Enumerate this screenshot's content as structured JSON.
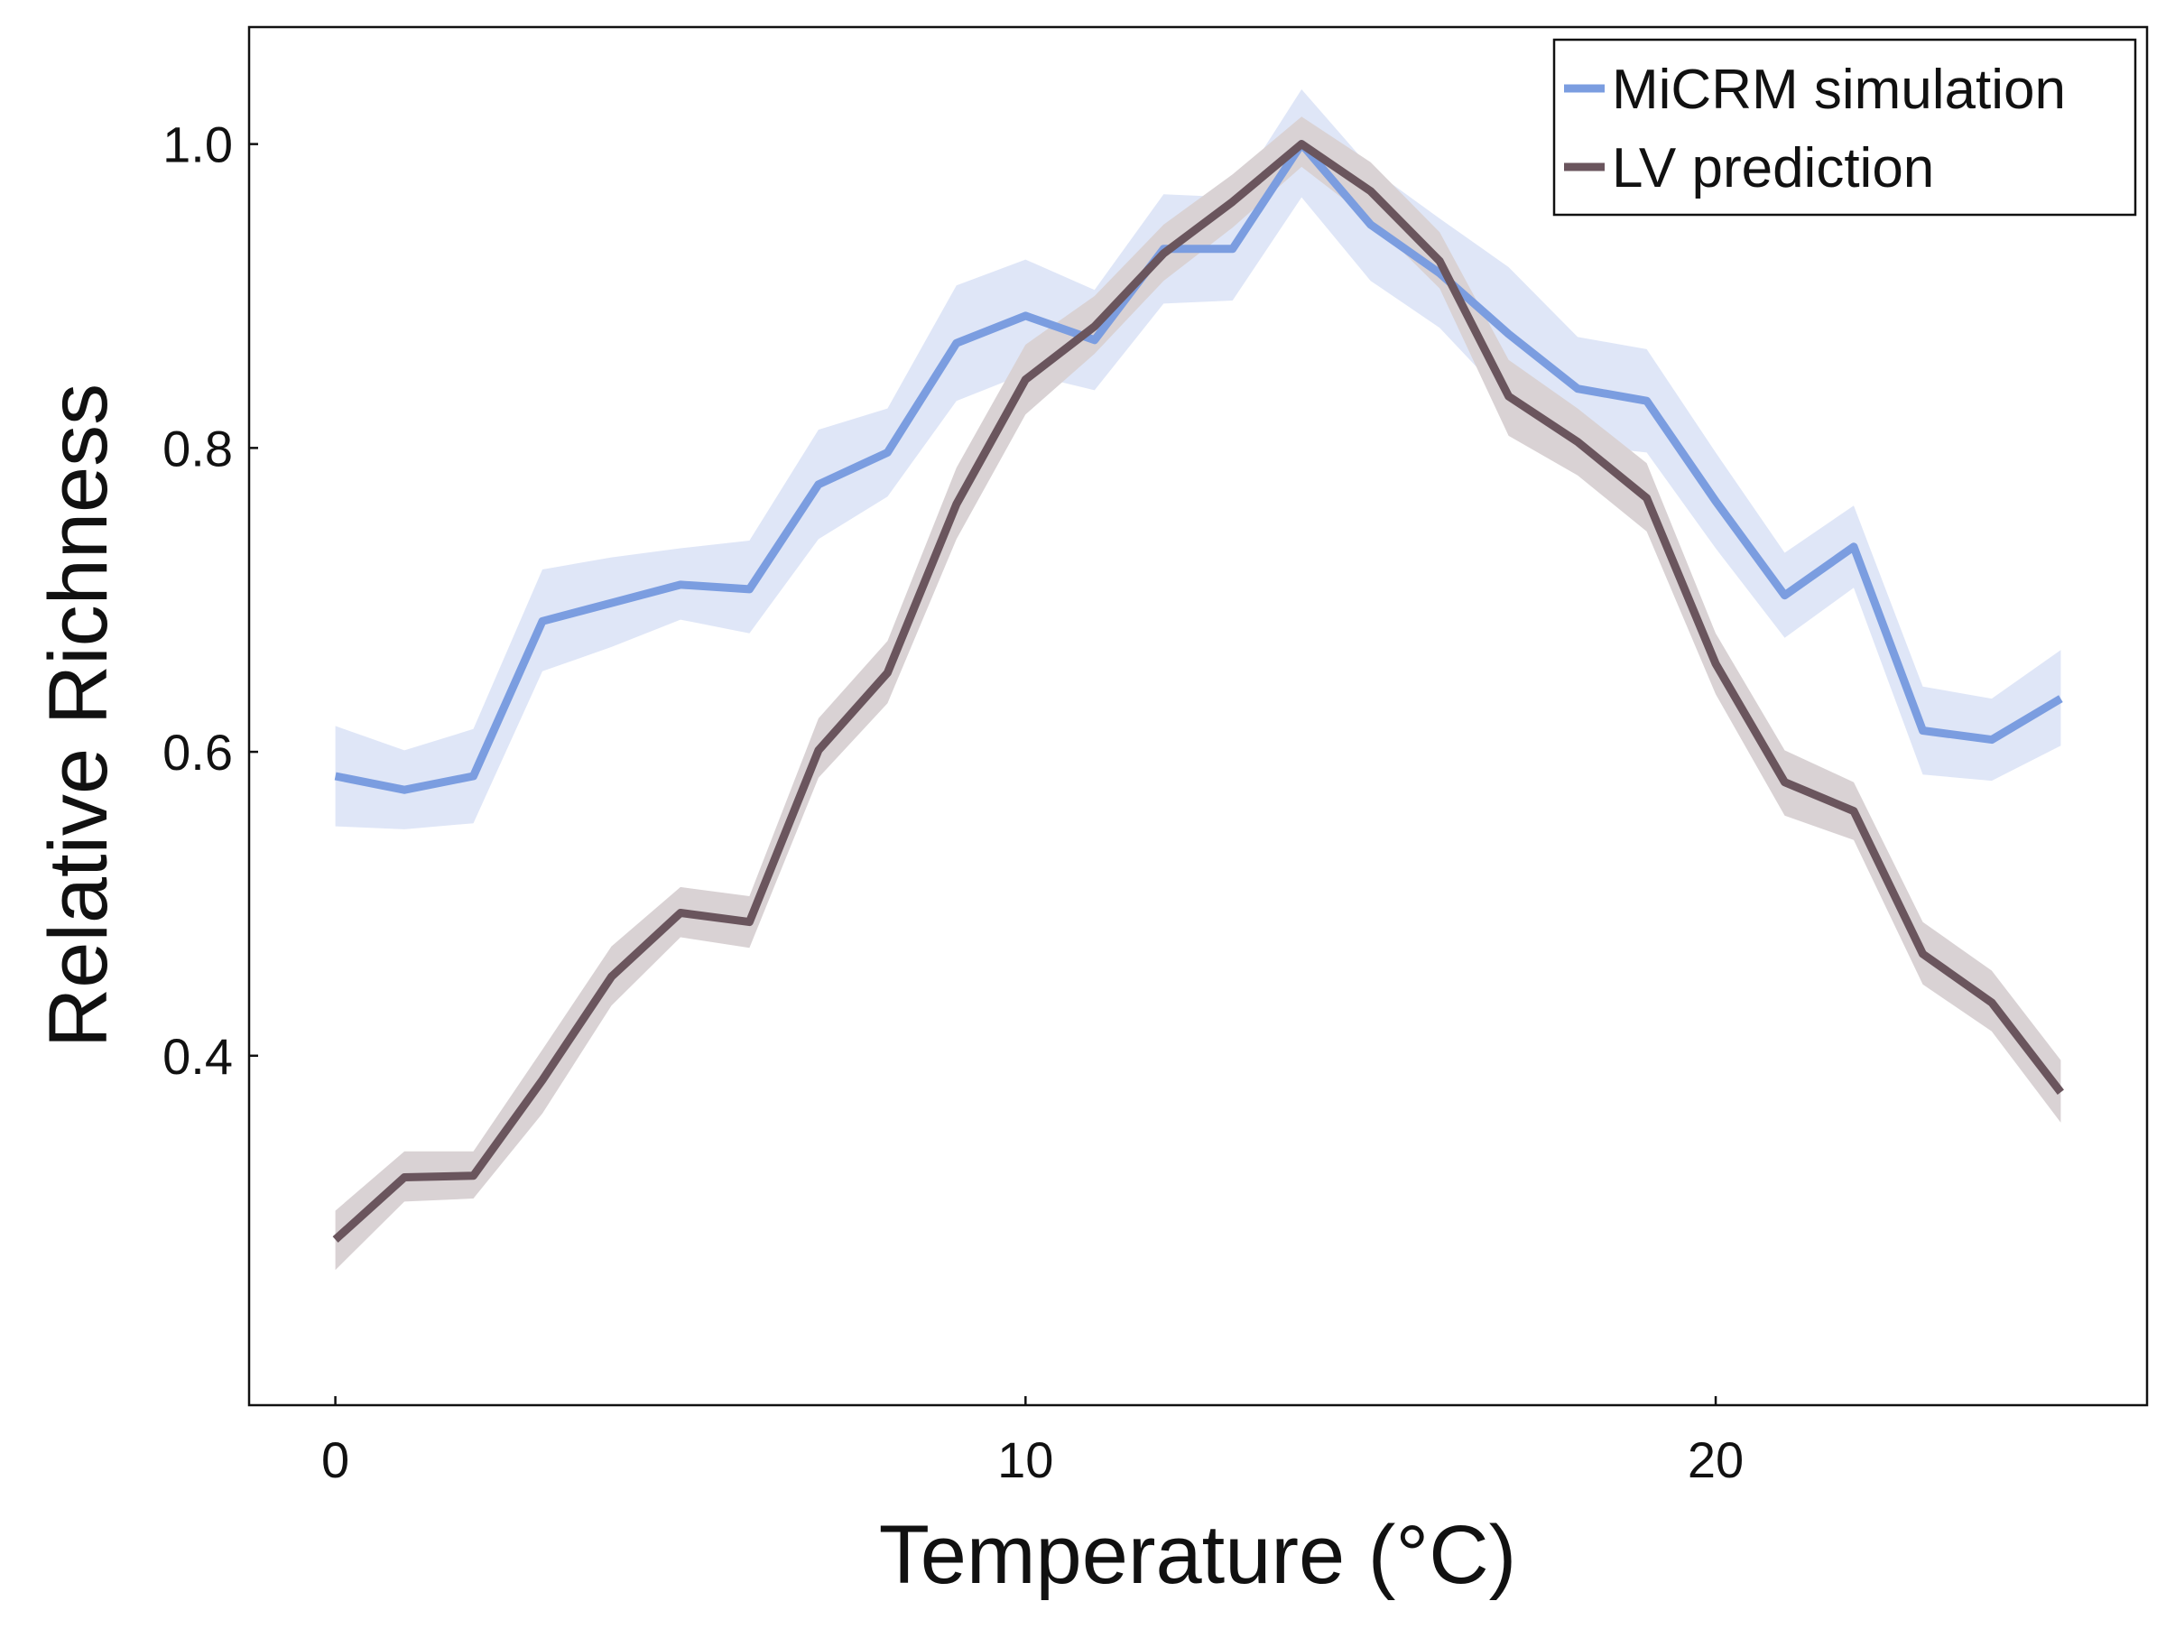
{
  "chart_data": {
    "type": "line",
    "xlabel": "Temperature (°C)",
    "ylabel": "Relative Richness",
    "xlim": [
      -1.25,
      26.25
    ],
    "ylim": [
      0.17,
      1.077
    ],
    "xticks": [
      0,
      10,
      20
    ],
    "yticks": [
      0.4,
      0.6,
      0.8,
      1.0
    ],
    "xtick_labels": [
      "0",
      "10",
      "20"
    ],
    "ytick_labels": [
      "0.4",
      "0.6",
      "0.8",
      "1.0"
    ],
    "grid": false,
    "legend_position": "top-right",
    "x": [
      0,
      1,
      2,
      3,
      4,
      5,
      6,
      7,
      8,
      9,
      10,
      11,
      12,
      13,
      14,
      15,
      16,
      17,
      18,
      19,
      20,
      21,
      22,
      23,
      24,
      25
    ],
    "series": [
      {
        "name": "MiCRM simulation",
        "color": "#7b9de0",
        "band_color": "#dfe6f7",
        "values": [
          0.584,
          0.575,
          0.584,
          0.686,
          0.698,
          0.71,
          0.707,
          0.776,
          0.797,
          0.869,
          0.887,
          0.871,
          0.931,
          0.931,
          1.0,
          0.947,
          0.915,
          0.875,
          0.839,
          0.831,
          0.765,
          0.703,
          0.735,
          0.614,
          0.608,
          0.635
        ],
        "lower": [
          0.551,
          0.549,
          0.553,
          0.653,
          0.669,
          0.687,
          0.678,
          0.74,
          0.768,
          0.831,
          0.849,
          0.838,
          0.895,
          0.897,
          0.965,
          0.91,
          0.879,
          0.831,
          0.802,
          0.797,
          0.734,
          0.675,
          0.708,
          0.585,
          0.581,
          0.604
        ],
        "upper": [
          0.617,
          0.601,
          0.615,
          0.72,
          0.728,
          0.734,
          0.739,
          0.812,
          0.826,
          0.907,
          0.924,
          0.904,
          0.967,
          0.965,
          1.036,
          0.984,
          0.951,
          0.919,
          0.873,
          0.865,
          0.797,
          0.731,
          0.762,
          0.643,
          0.635,
          0.667
        ]
      },
      {
        "name": "LV prediction",
        "color": "#6a555d",
        "band_color": "#d9d2d4",
        "values": [
          0.279,
          0.32,
          0.321,
          0.384,
          0.452,
          0.494,
          0.488,
          0.601,
          0.652,
          0.763,
          0.845,
          0.88,
          0.928,
          0.962,
          1.0,
          0.969,
          0.923,
          0.834,
          0.804,
          0.767,
          0.658,
          0.58,
          0.561,
          0.467,
          0.435,
          0.376
        ],
        "lower": [
          0.259,
          0.304,
          0.306,
          0.362,
          0.433,
          0.478,
          0.471,
          0.583,
          0.632,
          0.74,
          0.822,
          0.862,
          0.91,
          0.945,
          0.985,
          0.95,
          0.905,
          0.808,
          0.782,
          0.745,
          0.638,
          0.558,
          0.542,
          0.447,
          0.416,
          0.356
        ],
        "upper": [
          0.298,
          0.337,
          0.337,
          0.404,
          0.472,
          0.511,
          0.505,
          0.622,
          0.673,
          0.787,
          0.868,
          0.9,
          0.947,
          0.98,
          1.018,
          0.988,
          0.942,
          0.858,
          0.826,
          0.79,
          0.678,
          0.601,
          0.58,
          0.488,
          0.456,
          0.397
        ]
      }
    ]
  }
}
